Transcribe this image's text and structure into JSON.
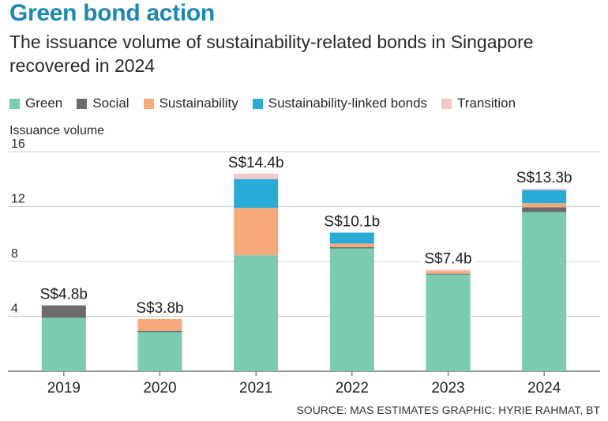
{
  "header": {
    "title": "Green bond action",
    "subtitle": "The issuance volume of sustainability-related bonds in Singapore recovered in 2024"
  },
  "chart_data": {
    "type": "bar",
    "stacked": true,
    "categories": [
      "2019",
      "2020",
      "2021",
      "2022",
      "2023",
      "2024"
    ],
    "series": [
      {
        "name": "Green",
        "color": "#7acbb0",
        "values": [
          3.9,
          2.85,
          8.45,
          8.95,
          7.05,
          11.6
        ]
      },
      {
        "name": "Social",
        "color": "#6b6b6b",
        "values": [
          0.9,
          0.1,
          0.0,
          0.1,
          0.05,
          0.35
        ]
      },
      {
        "name": "Sustainability",
        "color": "#f6a97a",
        "values": [
          0.0,
          0.85,
          3.45,
          0.25,
          0.2,
          0.3
        ]
      },
      {
        "name": "Sustainability-linked bonds",
        "color": "#2aaad6",
        "values": [
          0.0,
          0.0,
          2.1,
          0.8,
          0.0,
          0.95
        ]
      },
      {
        "name": "Transition",
        "color": "#f7c6c6",
        "values": [
          0.0,
          0.0,
          0.4,
          0.0,
          0.1,
          0.1
        ]
      }
    ],
    "totals_labels": [
      "S$4.8b",
      "S$3.8b",
      "S$14.4b",
      "S$10.1b",
      "S$7.4b",
      "S$13.3b"
    ],
    "ylabel": "Issuance volume",
    "ylim": [
      0,
      16
    ],
    "yticks": [
      4,
      8,
      12,
      16
    ],
    "grid": true,
    "legend_position": "top-left"
  },
  "footer": {
    "source": "SOURCE: MAS ESTIMATES   GRAPHIC: HYRIE RAHMAT, BT"
  }
}
